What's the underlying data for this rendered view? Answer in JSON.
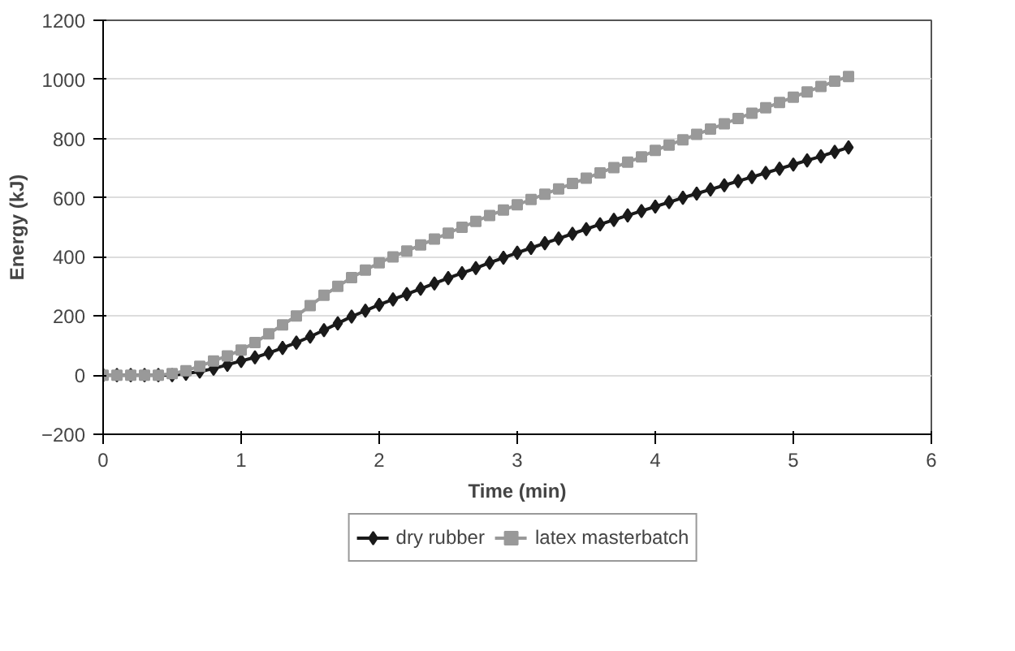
{
  "chart_data": {
    "type": "line",
    "xlabel": "Time (min)",
    "ylabel": "Energy (kJ)",
    "x": [
      0,
      0.1,
      0.2,
      0.3,
      0.4,
      0.5,
      0.6,
      0.7,
      0.8,
      0.9,
      1.0,
      1.1,
      1.2,
      1.3,
      1.4,
      1.5,
      1.6,
      1.7,
      1.8,
      1.9,
      2.0,
      2.1,
      2.2,
      2.3,
      2.4,
      2.5,
      2.6,
      2.7,
      2.8,
      2.9,
      3.0,
      3.1,
      3.2,
      3.3,
      3.4,
      3.5,
      3.6,
      3.7,
      3.8,
      3.9,
      4.0,
      4.1,
      4.2,
      4.3,
      4.4,
      4.5,
      4.6,
      4.7,
      4.8,
      4.9,
      5.0,
      5.1,
      5.2,
      5.3,
      5.4
    ],
    "series": [
      {
        "name": "dry rubber",
        "color": "#1a1a1a",
        "marker": "diamond",
        "values": [
          0,
          0,
          0,
          0,
          0,
          0,
          5,
          12,
          22,
          35,
          48,
          60,
          75,
          92,
          110,
          130,
          152,
          175,
          198,
          218,
          238,
          256,
          274,
          292,
          310,
          328,
          345,
          362,
          380,
          397,
          414,
          430,
          446,
          462,
          478,
          494,
          510,
          525,
          540,
          555,
          570,
          585,
          600,
          614,
          628,
          642,
          656,
          670,
          684,
          698,
          712,
          726,
          740,
          755,
          770
        ]
      },
      {
        "name": "latex masterbatch",
        "color": "#999999",
        "marker": "square",
        "values": [
          0,
          0,
          0,
          0,
          0,
          5,
          15,
          30,
          48,
          65,
          85,
          110,
          140,
          170,
          200,
          235,
          270,
          300,
          330,
          355,
          380,
          400,
          420,
          440,
          460,
          480,
          500,
          520,
          540,
          558,
          576,
          594,
          612,
          630,
          648,
          666,
          684,
          702,
          720,
          738,
          760,
          778,
          796,
          814,
          832,
          850,
          868,
          886,
          904,
          922,
          940,
          958,
          976,
          994,
          1010
        ]
      }
    ],
    "xlim": [
      0,
      6
    ],
    "xticks": [
      0,
      1,
      2,
      3,
      4,
      5,
      6
    ],
    "ylim": [
      -200,
      1200
    ],
    "yticks": [
      -200,
      0,
      200,
      400,
      600,
      800,
      1000,
      1200
    ],
    "grid": "y",
    "legend": "bottom",
    "line_style": "solid"
  }
}
